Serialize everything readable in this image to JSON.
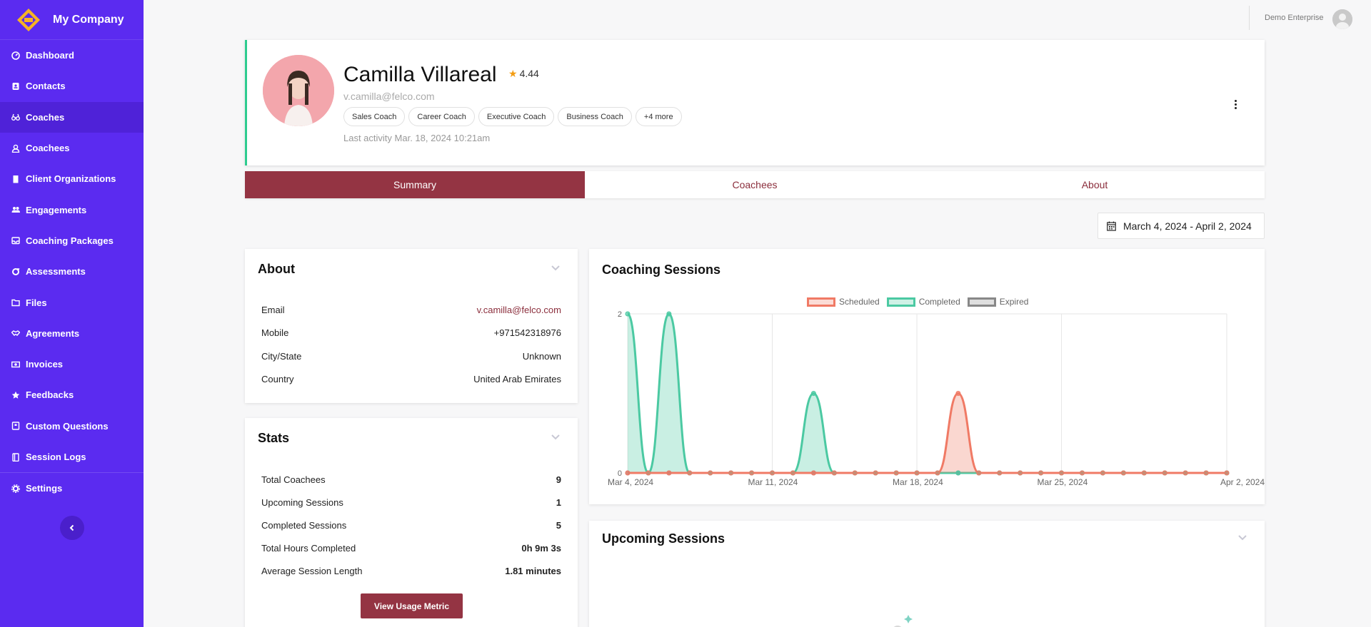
{
  "brand": {
    "name": "My Company"
  },
  "sidebar": {
    "items": [
      {
        "label": "Dashboard",
        "icon": "dashboard-icon"
      },
      {
        "label": "Contacts",
        "icon": "contacts-icon"
      },
      {
        "label": "Coaches",
        "icon": "binoculars-icon",
        "active": true
      },
      {
        "label": "Coachees",
        "icon": "user-icon"
      },
      {
        "label": "Client Organizations",
        "icon": "building-icon"
      },
      {
        "label": "Engagements",
        "icon": "users-icon"
      },
      {
        "label": "Coaching Packages",
        "icon": "inbox-icon"
      },
      {
        "label": "Assessments",
        "icon": "sync-icon"
      },
      {
        "label": "Files",
        "icon": "folder-icon"
      },
      {
        "label": "Agreements",
        "icon": "handshake-icon"
      },
      {
        "label": "Invoices",
        "icon": "money-icon"
      },
      {
        "label": "Feedbacks",
        "icon": "star-icon"
      },
      {
        "label": "Custom Questions",
        "icon": "question-book-icon"
      },
      {
        "label": "Session Logs",
        "icon": "book-icon"
      },
      {
        "label": "Settings",
        "icon": "gear-icon"
      }
    ]
  },
  "topbar": {
    "user_name": "Demo Enterprise"
  },
  "profile": {
    "name": "Camilla Villareal",
    "rating": "4.44",
    "email": "v.camilla@felco.com",
    "tags": [
      "Sales Coach",
      "Career Coach",
      "Executive Coach",
      "Business Coach",
      "+4 more"
    ],
    "last_activity": "Last activity Mar. 18, 2024 10:21am"
  },
  "tabs": [
    "Summary",
    "Coachees",
    "About"
  ],
  "date_range": "March 4, 2024 - April 2, 2024",
  "about": {
    "title": "About",
    "rows": [
      {
        "label": "Email",
        "value": "v.camilla@felco.com"
      },
      {
        "label": "Mobile",
        "value": "+971542318976"
      },
      {
        "label": "City/State",
        "value": "Unknown"
      },
      {
        "label": "Country",
        "value": "United Arab Emirates"
      }
    ]
  },
  "stats": {
    "title": "Stats",
    "rows": [
      {
        "label": "Total Coachees",
        "value": "9"
      },
      {
        "label": "Upcoming Sessions",
        "value": "1"
      },
      {
        "label": "Completed Sessions",
        "value": "5"
      },
      {
        "label": "Total Hours Completed",
        "value": "0h 9m 3s"
      },
      {
        "label": "Average Session Length",
        "value": "1.81 minutes"
      }
    ],
    "button": "View Usage Metric"
  },
  "sessions": {
    "title": "Coaching Sessions"
  },
  "upcoming": {
    "title": "Upcoming Sessions"
  },
  "chart_data": {
    "type": "line",
    "title": "Coaching Sessions",
    "x": [
      "Mar 4, 2024",
      "Mar 5",
      "Mar 6",
      "Mar 7",
      "Mar 8",
      "Mar 9",
      "Mar 10",
      "Mar 11, 2024",
      "Mar 12",
      "Mar 13",
      "Mar 14",
      "Mar 15",
      "Mar 16",
      "Mar 17",
      "Mar 18, 2024",
      "Mar 19",
      "Mar 20",
      "Mar 21",
      "Mar 22",
      "Mar 23",
      "Mar 24",
      "Mar 25, 2024",
      "Mar 26",
      "Mar 27",
      "Mar 28",
      "Mar 29",
      "Mar 30",
      "Mar 31",
      "Apr 1",
      "Apr 2, 2024"
    ],
    "x_tick_labels": [
      "Mar 4, 2024",
      "Mar 11, 2024",
      "Mar 18, 2024",
      "Mar 25, 2024",
      "Apr 2, 2024"
    ],
    "y_ticks": [
      "0",
      "2"
    ],
    "ylim": [
      0,
      2
    ],
    "legend_position": "top",
    "series": [
      {
        "name": "Scheduled",
        "color": "#f07a65",
        "values": [
          0,
          0,
          0,
          0,
          0,
          0,
          0,
          0,
          0,
          0,
          0,
          0,
          0,
          0,
          0,
          0,
          1,
          0,
          0,
          0,
          0,
          0,
          0,
          0,
          0,
          0,
          0,
          0,
          0,
          0
        ]
      },
      {
        "name": "Completed",
        "color": "#4bc9a2",
        "values": [
          2,
          0,
          2,
          0,
          0,
          0,
          0,
          0,
          0,
          1,
          0,
          0,
          0,
          0,
          0,
          0,
          0,
          0,
          0,
          0,
          0,
          0,
          0,
          0,
          0,
          0,
          0,
          0,
          0,
          0
        ]
      },
      {
        "name": "Expired",
        "color": "#888888",
        "values": [
          0,
          0,
          0,
          0,
          0,
          0,
          0,
          0,
          0,
          0,
          0,
          0,
          0,
          0,
          0,
          0,
          0,
          0,
          0,
          0,
          0,
          0,
          0,
          0,
          0,
          0,
          0,
          0,
          0,
          0
        ]
      }
    ]
  }
}
